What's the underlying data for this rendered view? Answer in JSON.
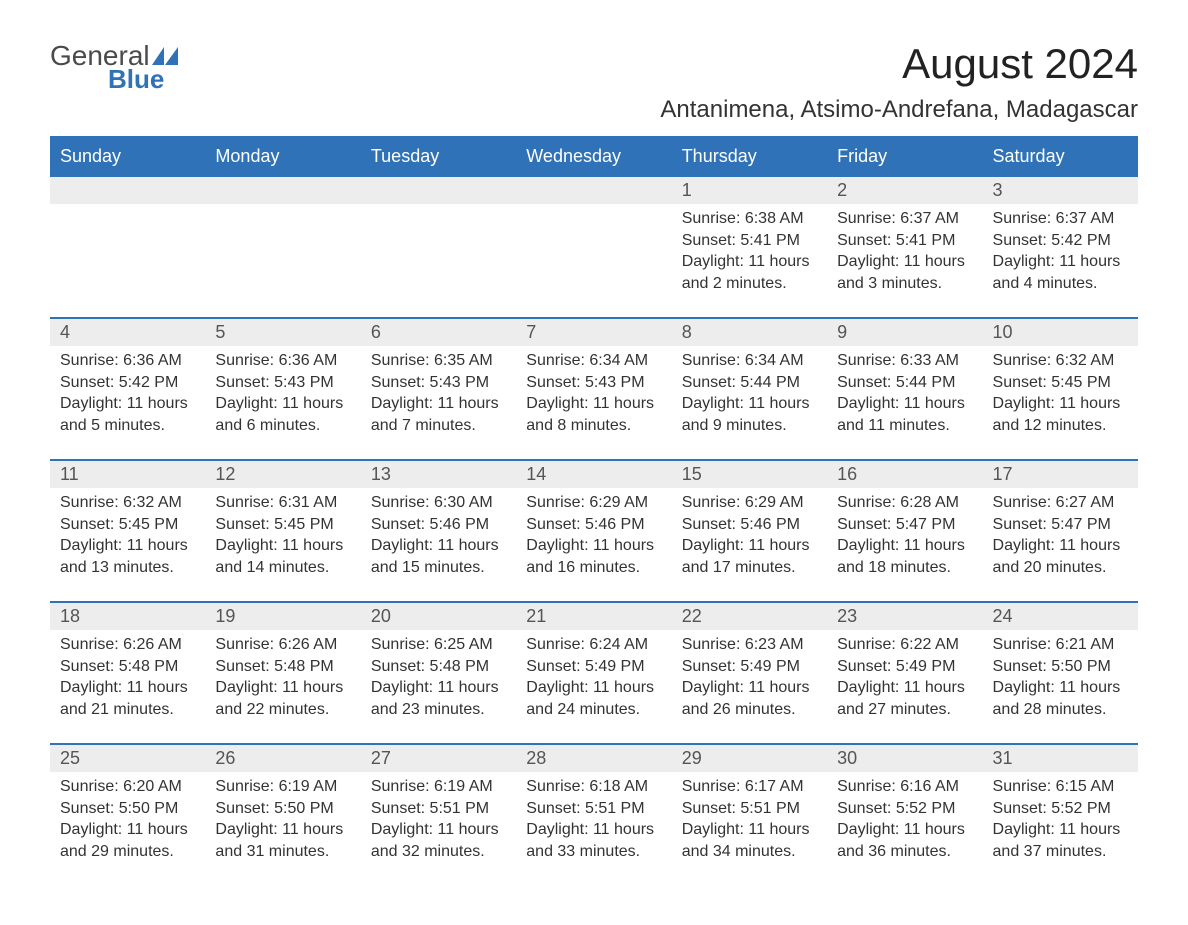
{
  "logo": {
    "text_general": "General",
    "text_blue": "Blue",
    "flag_color": "#2f72b8"
  },
  "title": {
    "month_year": "August 2024",
    "location": "Antanimena, Atsimo-Andrefana, Madagascar"
  },
  "calendar": {
    "header_bg": "#2f72b8",
    "header_fg": "#ffffff",
    "daynum_bg": "#ededed",
    "daynum_border": "#2f72b8",
    "text_color": "#333333",
    "background": "#ffffff",
    "columns": [
      "Sunday",
      "Monday",
      "Tuesday",
      "Wednesday",
      "Thursday",
      "Friday",
      "Saturday"
    ],
    "weeks": [
      [
        {
          "day": "",
          "sunrise": "",
          "sunset": "",
          "daylight": ""
        },
        {
          "day": "",
          "sunrise": "",
          "sunset": "",
          "daylight": ""
        },
        {
          "day": "",
          "sunrise": "",
          "sunset": "",
          "daylight": ""
        },
        {
          "day": "",
          "sunrise": "",
          "sunset": "",
          "daylight": ""
        },
        {
          "day": "1",
          "sunrise": "Sunrise: 6:38 AM",
          "sunset": "Sunset: 5:41 PM",
          "daylight": "Daylight: 11 hours and 2 minutes."
        },
        {
          "day": "2",
          "sunrise": "Sunrise: 6:37 AM",
          "sunset": "Sunset: 5:41 PM",
          "daylight": "Daylight: 11 hours and 3 minutes."
        },
        {
          "day": "3",
          "sunrise": "Sunrise: 6:37 AM",
          "sunset": "Sunset: 5:42 PM",
          "daylight": "Daylight: 11 hours and 4 minutes."
        }
      ],
      [
        {
          "day": "4",
          "sunrise": "Sunrise: 6:36 AM",
          "sunset": "Sunset: 5:42 PM",
          "daylight": "Daylight: 11 hours and 5 minutes."
        },
        {
          "day": "5",
          "sunrise": "Sunrise: 6:36 AM",
          "sunset": "Sunset: 5:43 PM",
          "daylight": "Daylight: 11 hours and 6 minutes."
        },
        {
          "day": "6",
          "sunrise": "Sunrise: 6:35 AM",
          "sunset": "Sunset: 5:43 PM",
          "daylight": "Daylight: 11 hours and 7 minutes."
        },
        {
          "day": "7",
          "sunrise": "Sunrise: 6:34 AM",
          "sunset": "Sunset: 5:43 PM",
          "daylight": "Daylight: 11 hours and 8 minutes."
        },
        {
          "day": "8",
          "sunrise": "Sunrise: 6:34 AM",
          "sunset": "Sunset: 5:44 PM",
          "daylight": "Daylight: 11 hours and 9 minutes."
        },
        {
          "day": "9",
          "sunrise": "Sunrise: 6:33 AM",
          "sunset": "Sunset: 5:44 PM",
          "daylight": "Daylight: 11 hours and 11 minutes."
        },
        {
          "day": "10",
          "sunrise": "Sunrise: 6:32 AM",
          "sunset": "Sunset: 5:45 PM",
          "daylight": "Daylight: 11 hours and 12 minutes."
        }
      ],
      [
        {
          "day": "11",
          "sunrise": "Sunrise: 6:32 AM",
          "sunset": "Sunset: 5:45 PM",
          "daylight": "Daylight: 11 hours and 13 minutes."
        },
        {
          "day": "12",
          "sunrise": "Sunrise: 6:31 AM",
          "sunset": "Sunset: 5:45 PM",
          "daylight": "Daylight: 11 hours and 14 minutes."
        },
        {
          "day": "13",
          "sunrise": "Sunrise: 6:30 AM",
          "sunset": "Sunset: 5:46 PM",
          "daylight": "Daylight: 11 hours and 15 minutes."
        },
        {
          "day": "14",
          "sunrise": "Sunrise: 6:29 AM",
          "sunset": "Sunset: 5:46 PM",
          "daylight": "Daylight: 11 hours and 16 minutes."
        },
        {
          "day": "15",
          "sunrise": "Sunrise: 6:29 AM",
          "sunset": "Sunset: 5:46 PM",
          "daylight": "Daylight: 11 hours and 17 minutes."
        },
        {
          "day": "16",
          "sunrise": "Sunrise: 6:28 AM",
          "sunset": "Sunset: 5:47 PM",
          "daylight": "Daylight: 11 hours and 18 minutes."
        },
        {
          "day": "17",
          "sunrise": "Sunrise: 6:27 AM",
          "sunset": "Sunset: 5:47 PM",
          "daylight": "Daylight: 11 hours and 20 minutes."
        }
      ],
      [
        {
          "day": "18",
          "sunrise": "Sunrise: 6:26 AM",
          "sunset": "Sunset: 5:48 PM",
          "daylight": "Daylight: 11 hours and 21 minutes."
        },
        {
          "day": "19",
          "sunrise": "Sunrise: 6:26 AM",
          "sunset": "Sunset: 5:48 PM",
          "daylight": "Daylight: 11 hours and 22 minutes."
        },
        {
          "day": "20",
          "sunrise": "Sunrise: 6:25 AM",
          "sunset": "Sunset: 5:48 PM",
          "daylight": "Daylight: 11 hours and 23 minutes."
        },
        {
          "day": "21",
          "sunrise": "Sunrise: 6:24 AM",
          "sunset": "Sunset: 5:49 PM",
          "daylight": "Daylight: 11 hours and 24 minutes."
        },
        {
          "day": "22",
          "sunrise": "Sunrise: 6:23 AM",
          "sunset": "Sunset: 5:49 PM",
          "daylight": "Daylight: 11 hours and 26 minutes."
        },
        {
          "day": "23",
          "sunrise": "Sunrise: 6:22 AM",
          "sunset": "Sunset: 5:49 PM",
          "daylight": "Daylight: 11 hours and 27 minutes."
        },
        {
          "day": "24",
          "sunrise": "Sunrise: 6:21 AM",
          "sunset": "Sunset: 5:50 PM",
          "daylight": "Daylight: 11 hours and 28 minutes."
        }
      ],
      [
        {
          "day": "25",
          "sunrise": "Sunrise: 6:20 AM",
          "sunset": "Sunset: 5:50 PM",
          "daylight": "Daylight: 11 hours and 29 minutes."
        },
        {
          "day": "26",
          "sunrise": "Sunrise: 6:19 AM",
          "sunset": "Sunset: 5:50 PM",
          "daylight": "Daylight: 11 hours and 31 minutes."
        },
        {
          "day": "27",
          "sunrise": "Sunrise: 6:19 AM",
          "sunset": "Sunset: 5:51 PM",
          "daylight": "Daylight: 11 hours and 32 minutes."
        },
        {
          "day": "28",
          "sunrise": "Sunrise: 6:18 AM",
          "sunset": "Sunset: 5:51 PM",
          "daylight": "Daylight: 11 hours and 33 minutes."
        },
        {
          "day": "29",
          "sunrise": "Sunrise: 6:17 AM",
          "sunset": "Sunset: 5:51 PM",
          "daylight": "Daylight: 11 hours and 34 minutes."
        },
        {
          "day": "30",
          "sunrise": "Sunrise: 6:16 AM",
          "sunset": "Sunset: 5:52 PM",
          "daylight": "Daylight: 11 hours and 36 minutes."
        },
        {
          "day": "31",
          "sunrise": "Sunrise: 6:15 AM",
          "sunset": "Sunset: 5:52 PM",
          "daylight": "Daylight: 11 hours and 37 minutes."
        }
      ]
    ]
  }
}
